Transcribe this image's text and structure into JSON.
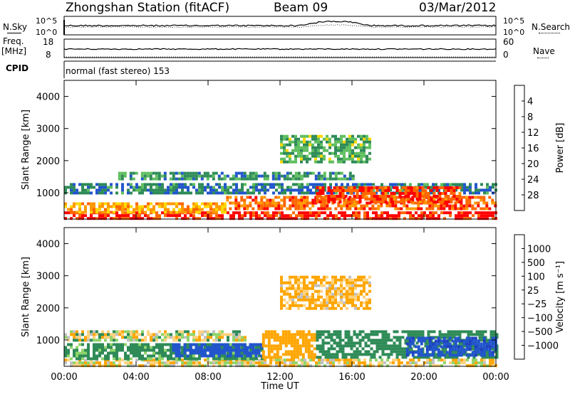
{
  "header": {
    "station": "Zhongshan Station (fitACF)",
    "beam": "Beam 09",
    "date": "03/Mar/2012"
  },
  "sky_panel": {
    "left_label": "N.Sky",
    "right_label": "N.Search",
    "left_ticks": [
      "10^5",
      "10^0"
    ],
    "right_ticks": [
      "10^5",
      "10^0"
    ]
  },
  "freq_panel": {
    "left_label_top": "Freq.",
    "left_label_bottom": "[MHz]",
    "right_label": "Nave",
    "left_ticks": [
      "18",
      "8"
    ],
    "right_ticks": [
      "60",
      "0"
    ]
  },
  "cpid": {
    "label": "CPID",
    "value": "normal (fast stereo) 153"
  },
  "colors": {
    "power": [
      "#0000ff",
      "#2255cc",
      "#2e8b57",
      "#5fbf5f",
      "#ffd700",
      "#ff9900",
      "#ff6600",
      "#ff0000"
    ],
    "velocity": [
      "#ff0000",
      "#ff6600",
      "#ffa500",
      "#ffd27f",
      "#c0c0c0",
      "#8fd46a",
      "#2e8b57",
      "#2255cc",
      "#1e40c0"
    ]
  },
  "chart_data": [
    {
      "type": "heatmap",
      "name": "power",
      "xlabel": "",
      "ylabel": "Slant Range [km]",
      "yticks": [
        "1000",
        "2000",
        "3000",
        "4000"
      ],
      "xticks": [
        "00:00",
        "04:00",
        "08:00",
        "12:00",
        "16:00",
        "20:00",
        "00:00"
      ],
      "ylim": [
        180,
        4500
      ],
      "xlim": [
        0,
        24
      ],
      "colorbar": {
        "label": "Power [dB]",
        "ticks": [
          "4",
          "8",
          "12",
          "16",
          "20",
          "24",
          "28"
        ],
        "range": [
          0,
          30
        ]
      },
      "regions": [
        {
          "t0": 0,
          "t1": 24,
          "r0": 240,
          "r1": 420,
          "level": 28
        },
        {
          "t0": 0,
          "t1": 9,
          "r0": 420,
          "r1": 700,
          "level": 20
        },
        {
          "t0": 9,
          "t1": 24,
          "r0": 500,
          "r1": 900,
          "level": 24
        },
        {
          "t0": 0,
          "t1": 24,
          "r0": 1000,
          "r1": 1300,
          "level": 8
        },
        {
          "t0": 14,
          "t1": 22,
          "r0": 700,
          "r1": 1200,
          "level": 26
        },
        {
          "t0": 3,
          "t1": 16,
          "r0": 1450,
          "r1": 1650,
          "level": 10
        },
        {
          "t0": 12,
          "t1": 17,
          "r0": 2000,
          "r1": 2800,
          "level": 12
        }
      ]
    },
    {
      "type": "heatmap",
      "name": "velocity",
      "xlabel": "Time UT",
      "ylabel": "Slant Range [km]",
      "yticks": [
        "1000",
        "2000",
        "3000",
        "4000"
      ],
      "xticks": [
        "00:00",
        "04:00",
        "08:00",
        "12:00",
        "16:00",
        "20:00",
        "00:00"
      ],
      "ylim": [
        180,
        4500
      ],
      "xlim": [
        0,
        24
      ],
      "colorbar": {
        "label": "Velocity [m s⁻¹]",
        "ticks": [
          "1000",
          "500",
          "100",
          "25",
          "−25",
          "−100",
          "−500",
          "−1000"
        ],
        "range": [
          -1200,
          1200
        ]
      },
      "regions": [
        {
          "t0": 0,
          "t1": 24,
          "r0": 240,
          "r1": 420,
          "level": -50
        },
        {
          "t0": 0,
          "t1": 11,
          "r0": 420,
          "r1": 900,
          "level": 200
        },
        {
          "t0": 6,
          "t1": 11,
          "r0": 500,
          "r1": 900,
          "level": 800
        },
        {
          "t0": 11,
          "t1": 14,
          "r0": 500,
          "r1": 1300,
          "level": -300
        },
        {
          "t0": 14,
          "t1": 24,
          "r0": 500,
          "r1": 1300,
          "level": 300
        },
        {
          "t0": 0,
          "t1": 10,
          "r0": 1000,
          "r1": 1300,
          "level": 0
        },
        {
          "t0": 19,
          "t1": 24,
          "r0": 500,
          "r1": 1100,
          "level": 900
        },
        {
          "t0": 12,
          "t1": 17,
          "r0": 2000,
          "r1": 3000,
          "level": -150
        }
      ]
    }
  ]
}
